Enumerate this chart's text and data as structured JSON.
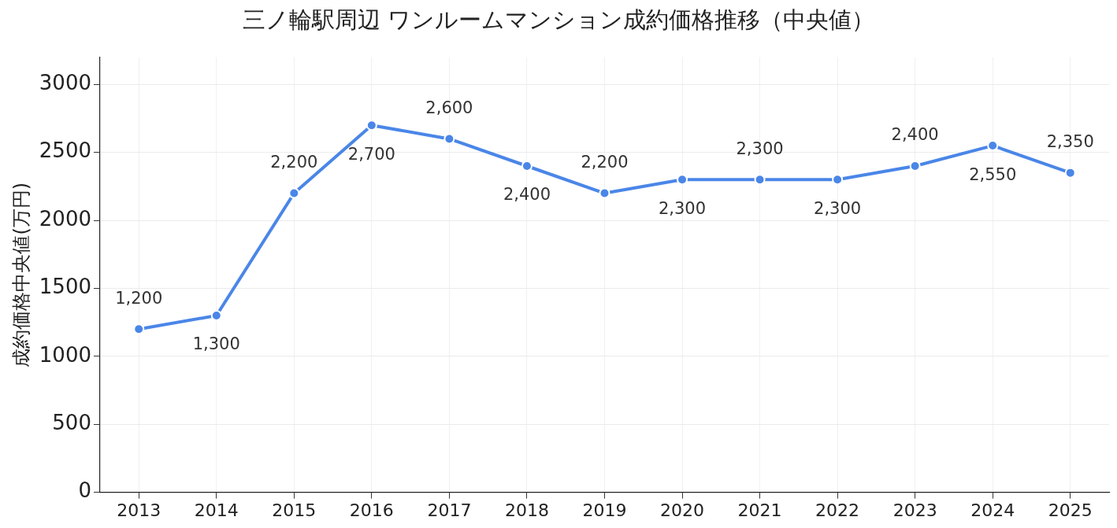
{
  "chart_data": {
    "type": "line",
    "title": "三ノ輪駅周辺 ワンルームマンション成約価格推移（中央値）",
    "ylabel": "成約価格中央値(万円)",
    "categories": [
      "2013",
      "2014",
      "2015",
      "2016",
      "2017",
      "2018",
      "2019",
      "2020",
      "2021",
      "2022",
      "2023",
      "2024",
      "2025"
    ],
    "series": [
      {
        "color": "#4a86e8",
        "values": [
          1200,
          1300,
          2200,
          2700,
          2600,
          2400,
          2200,
          2300,
          2300,
          2300,
          2400,
          2550,
          2350
        ],
        "value_labels": [
          "1,200",
          "1,300",
          "2,200",
          "2,700",
          "2,600",
          "2,400",
          "2,200",
          "2,300",
          "2,300",
          "2,300",
          "2,400",
          "2,550",
          "2,350"
        ]
      }
    ],
    "ylim": [
      0,
      3200
    ],
    "yticks": [
      0,
      500,
      1000,
      1500,
      2000,
      2500,
      3000
    ],
    "grid": true,
    "legend": false,
    "marker": "circle",
    "line_style": "solid"
  }
}
